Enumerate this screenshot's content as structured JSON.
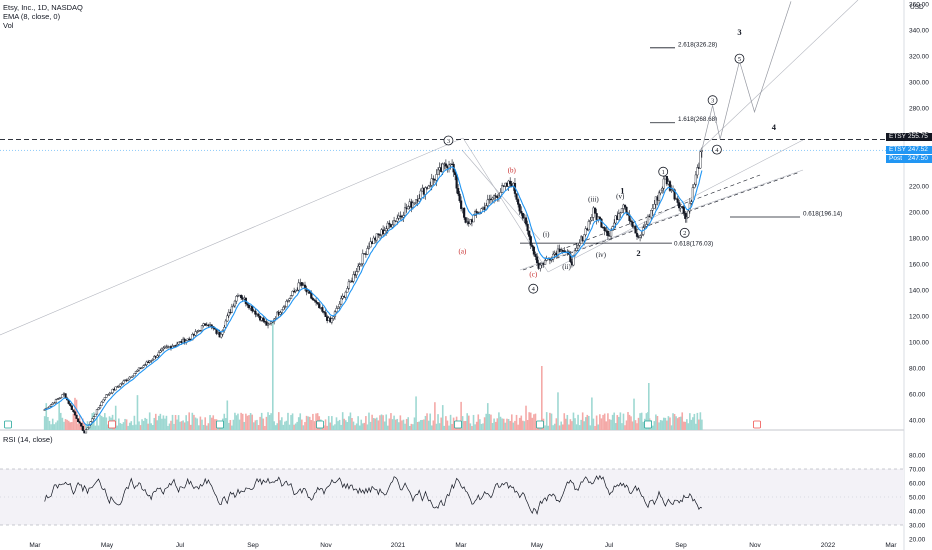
{
  "header": {
    "symbol_line": "Etsy, Inc., 1D, NASDAQ",
    "ema_line": "EMA (8, close, 0)",
    "vol_line": "Vol",
    "rsi_line": "RSI (14, close)"
  },
  "currency": "USD",
  "price_labels": {
    "level_name": "ETSY",
    "level_value": "255.75",
    "last_name": "ETSY",
    "last_value": "247.52",
    "post_name": "Post",
    "post_value": "247.50"
  },
  "colors": {
    "up": "#26a69a",
    "down": "#ef5350",
    "ema": "#2196f3",
    "candle_body": "#131722",
    "rsi": "#131722",
    "wave_label_red": "#c62828"
  },
  "chart_data": {
    "type": "line",
    "title": "Etsy, Inc., 1D, NASDAQ",
    "x_ticks": [
      "Mar",
      "May",
      "Jul",
      "Sep",
      "Nov",
      "2021",
      "Mar",
      "May",
      "Jul",
      "Sep",
      "Nov",
      "2022",
      "Mar"
    ],
    "y_ticks": [
      "40.00",
      "60.00",
      "80.00",
      "100.00",
      "120.00",
      "140.00",
      "160.00",
      "180.00",
      "200.00",
      "220.00",
      "240.00",
      "260.00",
      "280.00",
      "300.00",
      "320.00",
      "340.00",
      "360.00"
    ],
    "ylim": [
      35,
      362
    ],
    "rsi_ticks": [
      "20.00",
      "30.00",
      "40.00",
      "50.00",
      "60.00",
      "70.00",
      "80.00"
    ],
    "rsi_lim": [
      20,
      80
    ],
    "rsi_levels": [
      30,
      70
    ],
    "price_path": [
      {
        "x": "2020-02-10",
        "y": 48
      },
      {
        "x": "2020-02-28",
        "y": 60
      },
      {
        "x": "2020-03-18",
        "y": 30
      },
      {
        "x": "2020-04-06",
        "y": 58
      },
      {
        "x": "2020-05-05",
        "y": 77
      },
      {
        "x": "2020-06-01",
        "y": 95
      },
      {
        "x": "2020-06-25",
        "y": 103
      },
      {
        "x": "2020-07-10",
        "y": 115
      },
      {
        "x": "2020-07-22",
        "y": 105
      },
      {
        "x": "2020-08-08",
        "y": 138
      },
      {
        "x": "2020-09-05",
        "y": 112
      },
      {
        "x": "2020-10-05",
        "y": 145
      },
      {
        "x": "2020-11-02",
        "y": 115
      },
      {
        "x": "2020-12-08",
        "y": 175
      },
      {
        "x": "2021-01-15",
        "y": 205
      },
      {
        "x": "2021-02-22",
        "y": 240
      },
      {
        "x": "2021-03-08",
        "y": 190
      },
      {
        "x": "2021-04-05",
        "y": 213
      },
      {
        "x": "2021-04-20",
        "y": 223
      },
      {
        "x": "2021-05-15",
        "y": 158
      },
      {
        "x": "2021-06-05",
        "y": 173
      },
      {
        "x": "2021-06-15",
        "y": 162
      },
      {
        "x": "2021-07-05",
        "y": 200
      },
      {
        "x": "2021-07-20",
        "y": 183
      },
      {
        "x": "2021-08-02",
        "y": 208
      },
      {
        "x": "2021-08-16",
        "y": 178
      },
      {
        "x": "2021-09-10",
        "y": 226
      },
      {
        "x": "2021-09-30",
        "y": 196
      },
      {
        "x": "2021-10-14",
        "y": 247.52
      }
    ],
    "levels": [
      {
        "label": "2.618(326.28)",
        "value": 326.28
      },
      {
        "label": "1.618(268.68)",
        "value": 268.68
      },
      {
        "label": "0.618(196.14)",
        "value": 196.14
      },
      {
        "label": "0.618(176.03)",
        "value": 176.03
      }
    ],
    "dashed_level": 255.75,
    "last_price": 247.52,
    "post_price": 247.5,
    "wave_labels": [
      {
        "text": "3",
        "x": "2021-02-20",
        "y": 255,
        "circled": true,
        "color": "#131722"
      },
      {
        "text": "(a)",
        "x": "2021-03-05",
        "y": 170,
        "circled": false,
        "color": "#c62828"
      },
      {
        "text": "(b)",
        "x": "2021-04-20",
        "y": 232,
        "circled": false,
        "color": "#c62828"
      },
      {
        "text": "(c)",
        "x": "2021-05-10",
        "y": 152,
        "circled": false,
        "color": "#c62828"
      },
      {
        "text": "4",
        "x": "2021-05-10",
        "y": 141,
        "circled": true,
        "color": "#131722"
      },
      {
        "text": "(i)",
        "x": "2021-05-22",
        "y": 183,
        "circled": false,
        "color": "#131722"
      },
      {
        "text": "(ii)",
        "x": "2021-06-10",
        "y": 158,
        "circled": false,
        "color": "#131722"
      },
      {
        "text": "(iii)",
        "x": "2021-07-05",
        "y": 210,
        "circled": false,
        "color": "#131722"
      },
      {
        "text": "(iv)",
        "x": "2021-07-12",
        "y": 167,
        "circled": false,
        "color": "#131722"
      },
      {
        "text": "(v)",
        "x": "2021-07-30",
        "y": 212,
        "circled": false,
        "color": "#131722"
      },
      {
        "text": "1",
        "x": "2021-08-01",
        "y": 216,
        "circled": false,
        "color": "#131722"
      },
      {
        "text": "2",
        "x": "2021-08-16",
        "y": 168,
        "circled": false,
        "color": "#131722"
      },
      {
        "text": "1",
        "x": "2021-09-08",
        "y": 231,
        "circled": true,
        "color": "#131722"
      },
      {
        "text": "2",
        "x": "2021-09-28",
        "y": 184,
        "circled": true,
        "color": "#131722"
      },
      {
        "text": "3",
        "x": "2021-10-24",
        "y": 286,
        "circled": true,
        "color": "#131722"
      },
      {
        "text": "4",
        "x": "2021-10-28",
        "y": 248,
        "circled": true,
        "color": "#131722"
      },
      {
        "text": "5",
        "x": "2021-11-18",
        "y": 318,
        "circled": true,
        "color": "#131722"
      },
      {
        "text": "3",
        "x": "2021-11-18",
        "y": 338,
        "circled": false,
        "color": "#131722"
      },
      {
        "text": "4",
        "x": "2021-12-20",
        "y": 265,
        "circled": false,
        "color": "#131722"
      }
    ],
    "projection_path": [
      {
        "x": "2021-10-14",
        "y": 248
      },
      {
        "x": "2021-10-24",
        "y": 282
      },
      {
        "x": "2021-10-31",
        "y": 256
      },
      {
        "x": "2021-11-18",
        "y": 316
      },
      {
        "x": "2021-12-02",
        "y": 277
      },
      {
        "x": "2022-01-05",
        "y": 362
      }
    ]
  }
}
